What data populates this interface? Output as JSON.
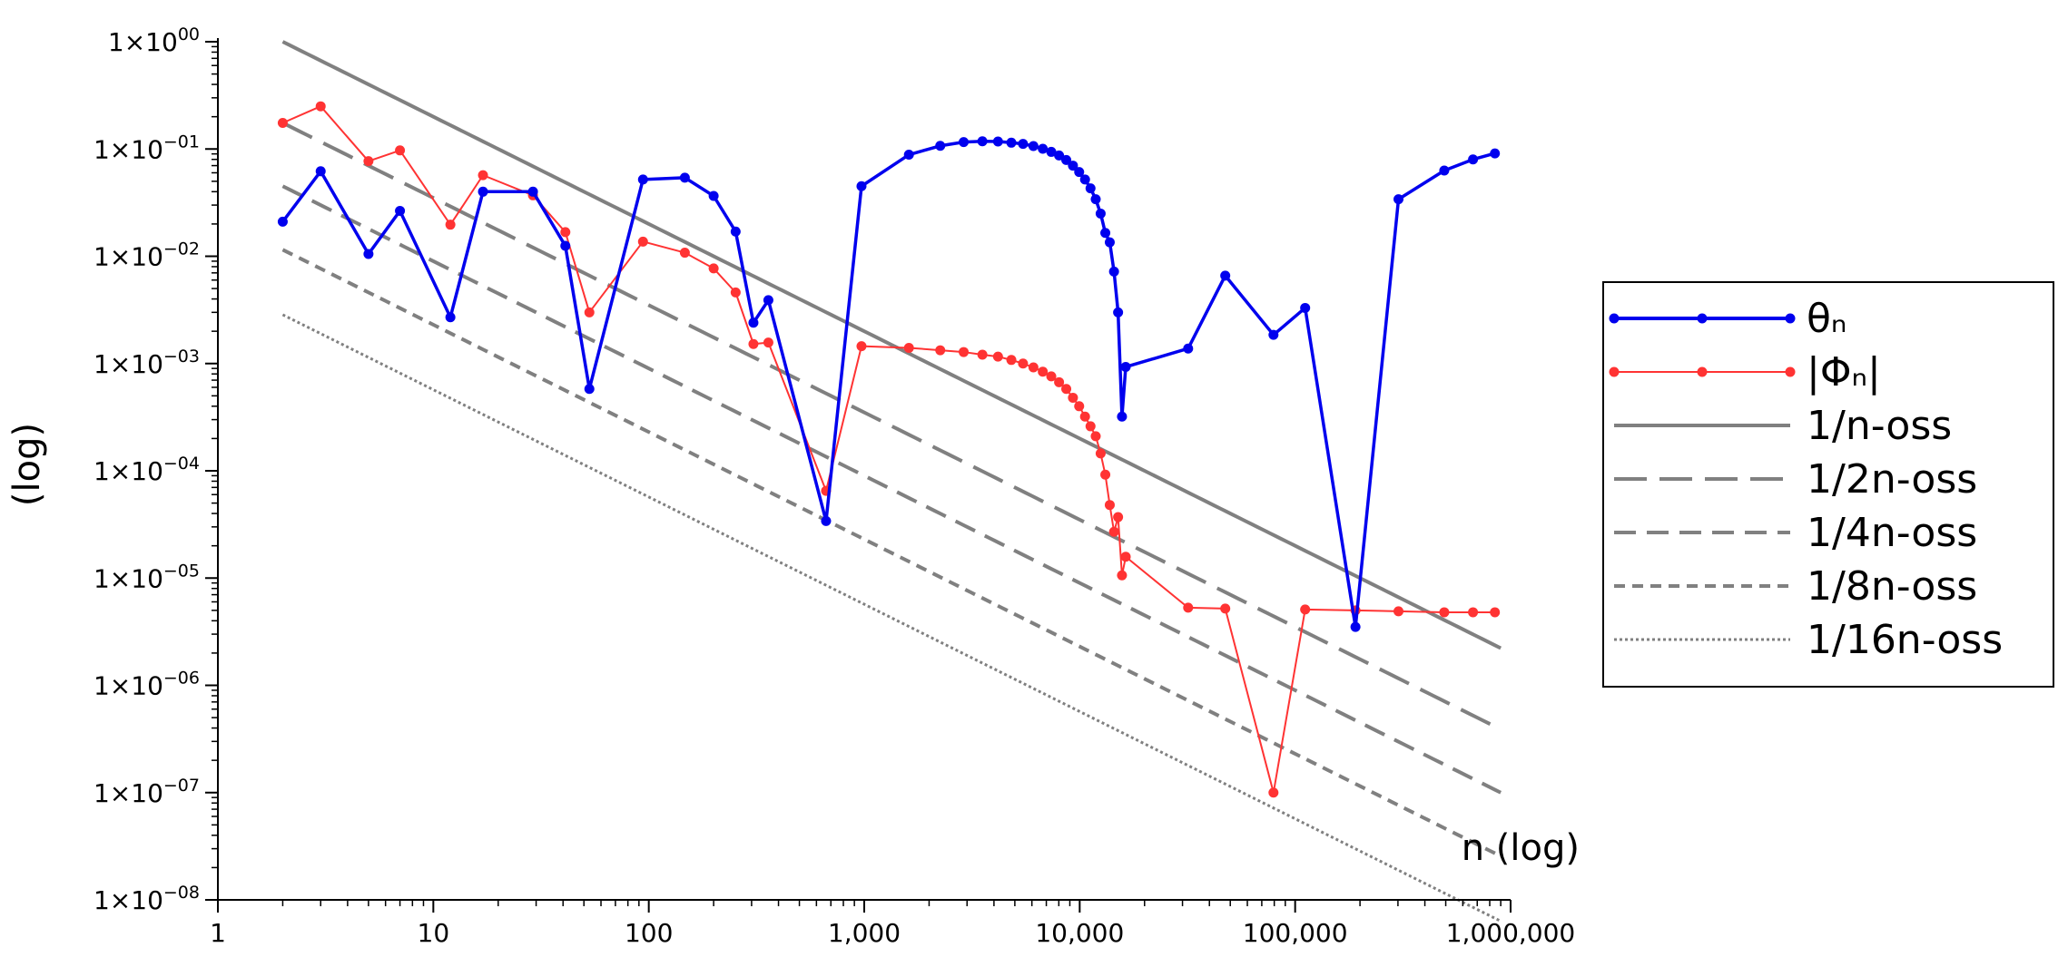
{
  "chart_data": {
    "type": "line",
    "title": "",
    "xlabel": "n (log)",
    "ylabel": "(log)",
    "x_scale": "log",
    "y_scale": "log",
    "xlim": [
      1,
      1000000
    ],
    "ylim": [
      1e-08,
      1
    ],
    "x_ticks": [
      {
        "value": 1,
        "label": "1"
      },
      {
        "value": 10,
        "label": "10"
      },
      {
        "value": 100,
        "label": "100"
      },
      {
        "value": 1000,
        "label": "1,000"
      },
      {
        "value": 10000,
        "label": "10,000"
      },
      {
        "value": 100000,
        "label": "100,000"
      },
      {
        "value": 1000000,
        "label": "1,000,000"
      }
    ],
    "y_ticks": [
      {
        "value": 1,
        "mantissa": "1×10",
        "exp": "00"
      },
      {
        "value": 0.1,
        "mantissa": "1×10",
        "exp": "−01"
      },
      {
        "value": 0.01,
        "mantissa": "1×10",
        "exp": "−02"
      },
      {
        "value": 0.001,
        "mantissa": "1×10",
        "exp": "−03"
      },
      {
        "value": 0.0001,
        "mantissa": "1×10",
        "exp": "−04"
      },
      {
        "value": 1e-05,
        "mantissa": "1×10",
        "exp": "−05"
      },
      {
        "value": 1e-06,
        "mantissa": "1×10",
        "exp": "−06"
      },
      {
        "value": 1e-07,
        "mantissa": "1×10",
        "exp": "−07"
      },
      {
        "value": 1e-08,
        "mantissa": "1×10",
        "exp": "−08"
      }
    ],
    "grid": false,
    "legend_position": "right",
    "series": [
      {
        "name": "θₙ",
        "color": "#0000ee",
        "style": "solid-markers",
        "x": [
          2,
          3,
          5,
          7,
          12,
          17,
          29,
          41,
          53,
          94,
          147,
          200,
          253,
          306,
          359,
          665,
          971,
          1612,
          2253,
          2894,
          3535,
          4176,
          4817,
          5458,
          6099,
          6740,
          7381,
          8022,
          8663,
          9304,
          9945,
          10586,
          11227,
          11868,
          12509,
          13150,
          13791,
          14432,
          15073,
          15714,
          16355,
          31867,
          47379,
          79335,
          111291,
          190537,
          301758,
          492125,
          669133,
          845641
        ],
        "y": [
          0.021,
          0.062,
          0.0105,
          0.0265,
          0.0027,
          0.04,
          0.04,
          0.0125,
          0.00058,
          0.052,
          0.054,
          0.0365,
          0.017,
          0.0024,
          0.0039,
          3.4e-05,
          0.045,
          0.0885,
          0.107,
          0.116,
          0.118,
          0.1175,
          0.1145,
          0.1115,
          0.1065,
          0.1005,
          0.094,
          0.087,
          0.079,
          0.07,
          0.061,
          0.052,
          0.043,
          0.034,
          0.025,
          0.0165,
          0.0135,
          0.0072,
          0.003,
          0.00032,
          0.00093,
          0.00138,
          0.0066,
          0.00185,
          0.0033,
          3.5e-06,
          0.034,
          0.063,
          0.08,
          0.091
        ]
      },
      {
        "name": "|Φₙ|",
        "color": "#ff3333",
        "style": "solid-markers",
        "x": [
          2,
          3,
          5,
          7,
          12,
          17,
          29,
          41,
          53,
          94,
          147,
          200,
          253,
          306,
          359,
          665,
          971,
          1612,
          2253,
          2894,
          3535,
          4176,
          4817,
          5458,
          6099,
          6740,
          7381,
          8022,
          8663,
          9304,
          9945,
          10586,
          11227,
          11868,
          12509,
          13150,
          13791,
          14432,
          15073,
          15714,
          16355,
          31867,
          47379,
          79335,
          111291,
          190537,
          301758,
          492125,
          669133,
          845641
        ],
        "y": [
          0.175,
          0.25,
          0.077,
          0.097,
          0.0197,
          0.057,
          0.037,
          0.0168,
          0.003,
          0.0137,
          0.0108,
          0.0077,
          0.0046,
          0.00152,
          0.00157,
          6.5e-05,
          0.00145,
          0.0014,
          0.00133,
          0.00128,
          0.00121,
          0.00116,
          0.00108,
          0.001,
          0.00092,
          0.00084,
          0.00076,
          0.00067,
          0.00058,
          0.00048,
          0.0004,
          0.00032,
          0.00026,
          0.00021,
          0.000145,
          9.2e-05,
          4.8e-05,
          2.7e-05,
          3.7e-05,
          1.06e-05,
          1.58e-05,
          5.3e-06,
          5.2e-06,
          1e-07,
          5.1e-06,
          5e-06,
          4.9e-06,
          4.8e-06,
          4.8e-06,
          4.8e-06
        ]
      },
      {
        "name": "1/n-oss",
        "color": "#808080",
        "style": "solid",
        "coef": 2
      },
      {
        "name": "1/2n-oss",
        "color": "#808080",
        "style": "long-dash",
        "coef": 0.35
      },
      {
        "name": "1/4n-oss",
        "color": "#808080",
        "style": "dash",
        "coef": 0.09
      },
      {
        "name": "1/8n-oss",
        "color": "#808080",
        "style": "short-dash",
        "coef": 0.023
      },
      {
        "name": "1/16n-oss",
        "color": "#808080",
        "style": "dotted",
        "coef": 0.0057
      }
    ]
  }
}
